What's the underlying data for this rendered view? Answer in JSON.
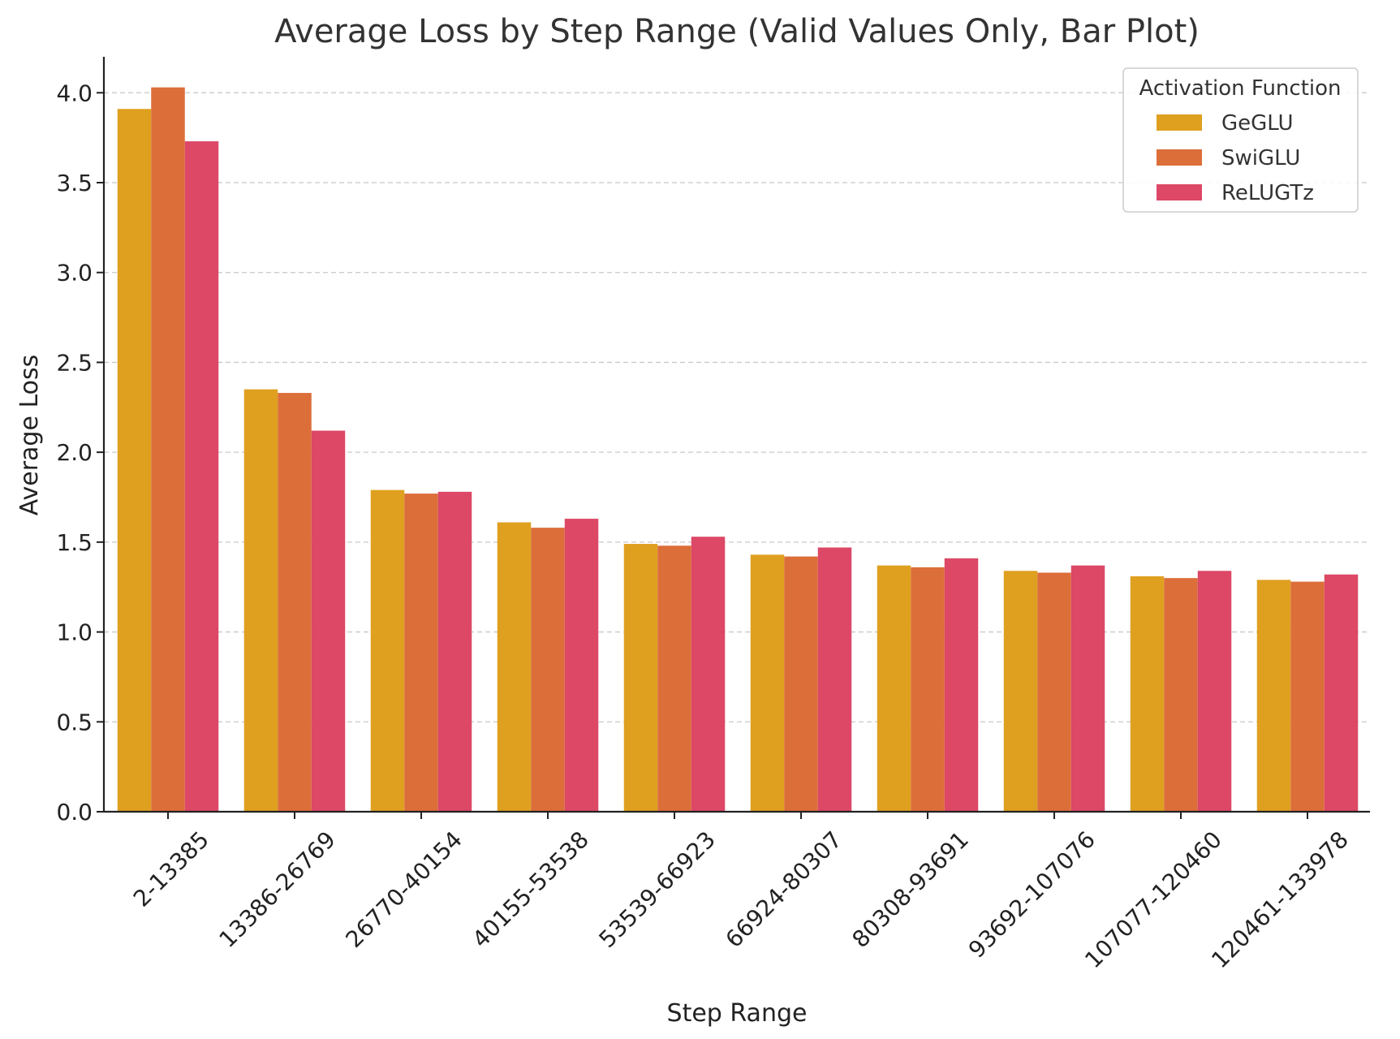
{
  "chart_data": {
    "type": "bar",
    "title": "Average Loss by Step Range (Valid Values Only, Bar Plot)",
    "xlabel": "Step Range",
    "ylabel": "Average Loss",
    "ylim": [
      0,
      4.2
    ],
    "yticks": [
      "0.0",
      "0.5",
      "1.0",
      "1.5",
      "2.0",
      "2.5",
      "3.0",
      "3.5",
      "4.0"
    ],
    "grid": "horizontal dashed",
    "legend": {
      "title": "Activation Function",
      "placement": "top-right"
    },
    "categories": [
      "2-13385",
      "13386-26769",
      "26770-40154",
      "40155-53538",
      "53539-66923",
      "66924-80307",
      "80308-93691",
      "93692-107076",
      "107077-120460",
      "120461-133978"
    ],
    "series": [
      {
        "name": "GeGLU",
        "color": "#dfa020",
        "values": [
          3.91,
          2.35,
          1.79,
          1.61,
          1.49,
          1.43,
          1.37,
          1.34,
          1.31,
          1.29
        ]
      },
      {
        "name": "SwiGLU",
        "color": "#dc6e3a",
        "values": [
          4.03,
          2.33,
          1.77,
          1.58,
          1.48,
          1.42,
          1.36,
          1.33,
          1.3,
          1.28
        ]
      },
      {
        "name": "ReLUGTz",
        "color": "#dc4866",
        "values": [
          3.73,
          2.12,
          1.78,
          1.63,
          1.53,
          1.47,
          1.41,
          1.37,
          1.34,
          1.32
        ]
      }
    ]
  }
}
